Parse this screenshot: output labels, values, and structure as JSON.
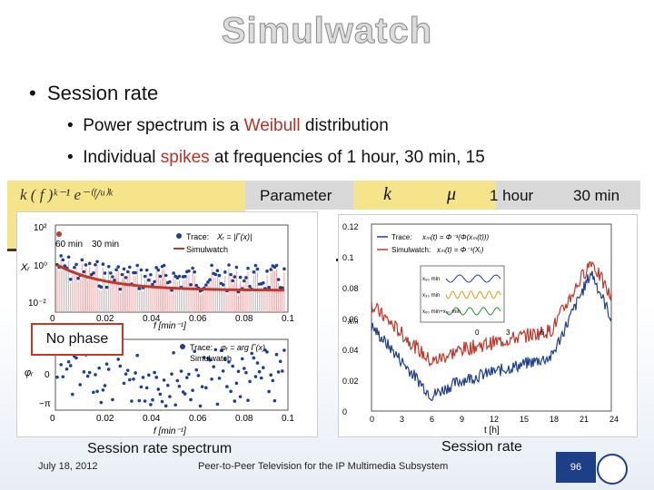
{
  "slide": {
    "title": "Simulwatch",
    "bullet": "Session rate",
    "sub1_prefix": "Power spectrum is a ",
    "sub1_red": "Weibull",
    "sub1_suffix": " distribution",
    "sub2_prefix": "Individual ",
    "sub2_red": "spikes",
    "sub2_suffix": " at frequencies of 1 hour, 30 min, 15"
  },
  "table": {
    "col_parameter": "Parameter",
    "col_k": "k",
    "col_mu": "μ",
    "col_1h": "1 hour",
    "col_30m": "30 min"
  },
  "formula_text": "k ( f )ᵏ⁻¹ e⁻⁽ᶠ/ᵘ⁾ᵏ",
  "spectrum_panel": {
    "y_ticks_top": [
      "10²",
      "10⁰",
      "10⁻²"
    ],
    "x_ticks": [
      "0",
      "0.02",
      "0.04",
      "0.06",
      "0.08",
      "0.1"
    ],
    "xlabel": "f  [min⁻¹]",
    "annot_60": "60 min",
    "annot_30": "30 min",
    "legend_trace": "Trace:",
    "legend_trace_eq": "Xᵣ = |Γ(x)|",
    "legend_sim": "Simulwatch",
    "ylabel_top": "Xᵣ",
    "y_ticks_bottom": [
      "π",
      "0",
      "−π"
    ],
    "ylabel_bottom": "φᵣ",
    "legend2_trace": "Trace:",
    "legend2_eq": "φᵣ = arg Γ(x)",
    "legend2_sim": "Simulwatch",
    "caption": "Session rate spectrum",
    "no_phase": "No phase"
  },
  "rate_panel": {
    "y_ticks": [
      "0.12",
      "0.1",
      "0.08",
      "0.06",
      "0.04",
      "0.02",
      "0"
    ],
    "x_ticks": [
      "0",
      "3",
      "6",
      "9",
      "12",
      "15",
      "18",
      "21",
      "24"
    ],
    "xlabel": "t [h]",
    "ylabel": "xₘ",
    "legend_trace": "Trace:",
    "legend_trace_eq": "xₘ(t) = Φ⁻¹(Φ(xₘ(t)))",
    "legend_sim": "Simulwatch:",
    "legend_sim_eq": "xₘ(t) = Φ⁻¹(Xᵣ)",
    "inset_labels": [
      "x₆₀ min",
      "x₃₀ min",
      "x₆₀ min+x₃₀ min"
    ],
    "inset_ticks": [
      "0",
      "3",
      "6"
    ],
    "caption": "Session rate"
  },
  "footer": {
    "date": "July 18, 2012",
    "center": "Peer-to-Peer Television for the IP Multimedia Subsystem",
    "page": "96"
  },
  "colors": {
    "trace": "#1f3f8f",
    "simulwatch": "#c0392b",
    "highlight": "#f6e48a"
  }
}
